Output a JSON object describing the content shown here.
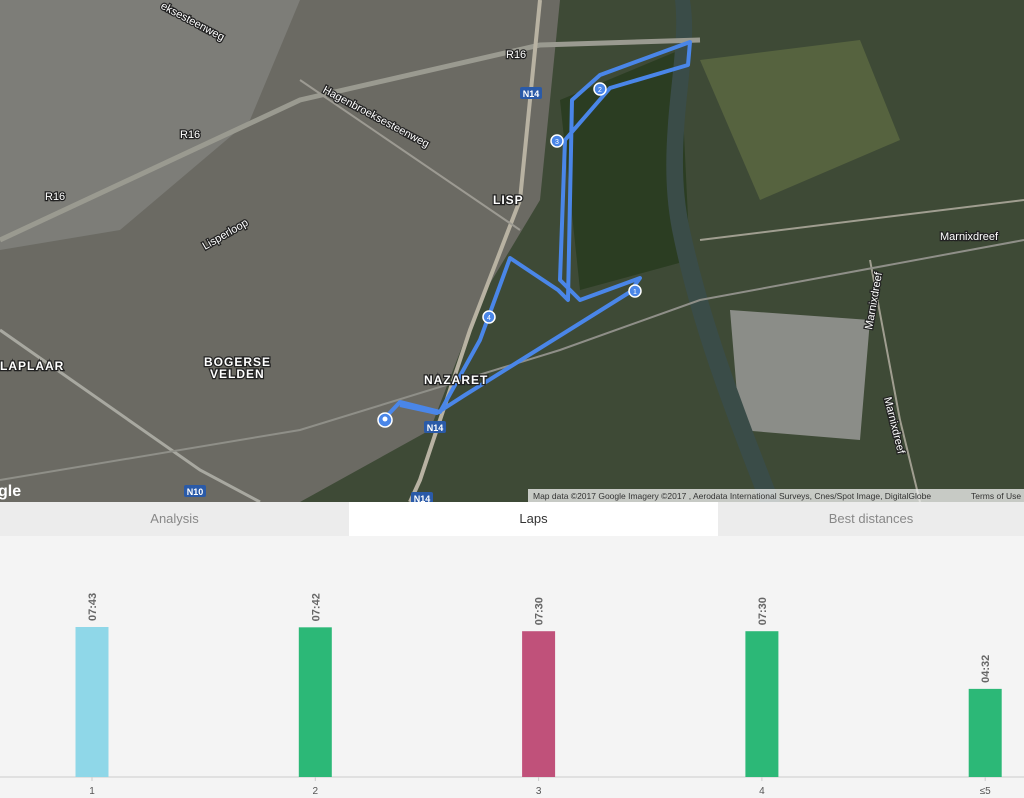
{
  "map": {
    "labels": [
      "R16",
      "R16",
      "R16",
      "Hagenbroeksesteenweg",
      "eksesteenweg",
      "Lisperloop",
      "LISP",
      "NAZARET",
      "BOGERSE",
      "VELDEN",
      "LAPLAAR",
      "Marnixdreef",
      "Marnixdreef",
      "Marnixdreef"
    ],
    "road_shields": [
      "N14",
      "N14",
      "N10",
      "N14"
    ],
    "markers": [
      "1",
      "2",
      "3",
      "4"
    ],
    "logo": "gle",
    "attribution": "Map data ©2017 Google Imagery ©2017 , Aerodata International Surveys, Cnes/Spot Image, DigitalGlobe",
    "terms": "Terms of Use"
  },
  "tabs": [
    "Analysis",
    "Laps",
    "Best distances"
  ],
  "chart_data": {
    "type": "bar",
    "categories": [
      "1",
      "2",
      "3",
      "4",
      "≤5"
    ],
    "values": [
      463,
      462,
      450,
      450,
      272
    ],
    "value_labels": [
      "07:43",
      "07:42",
      "07:30",
      "07:30",
      "04:32"
    ],
    "colors": [
      "#8fd7e8",
      "#2cb877",
      "#c0517a",
      "#2cb877",
      "#2cb877"
    ]
  }
}
